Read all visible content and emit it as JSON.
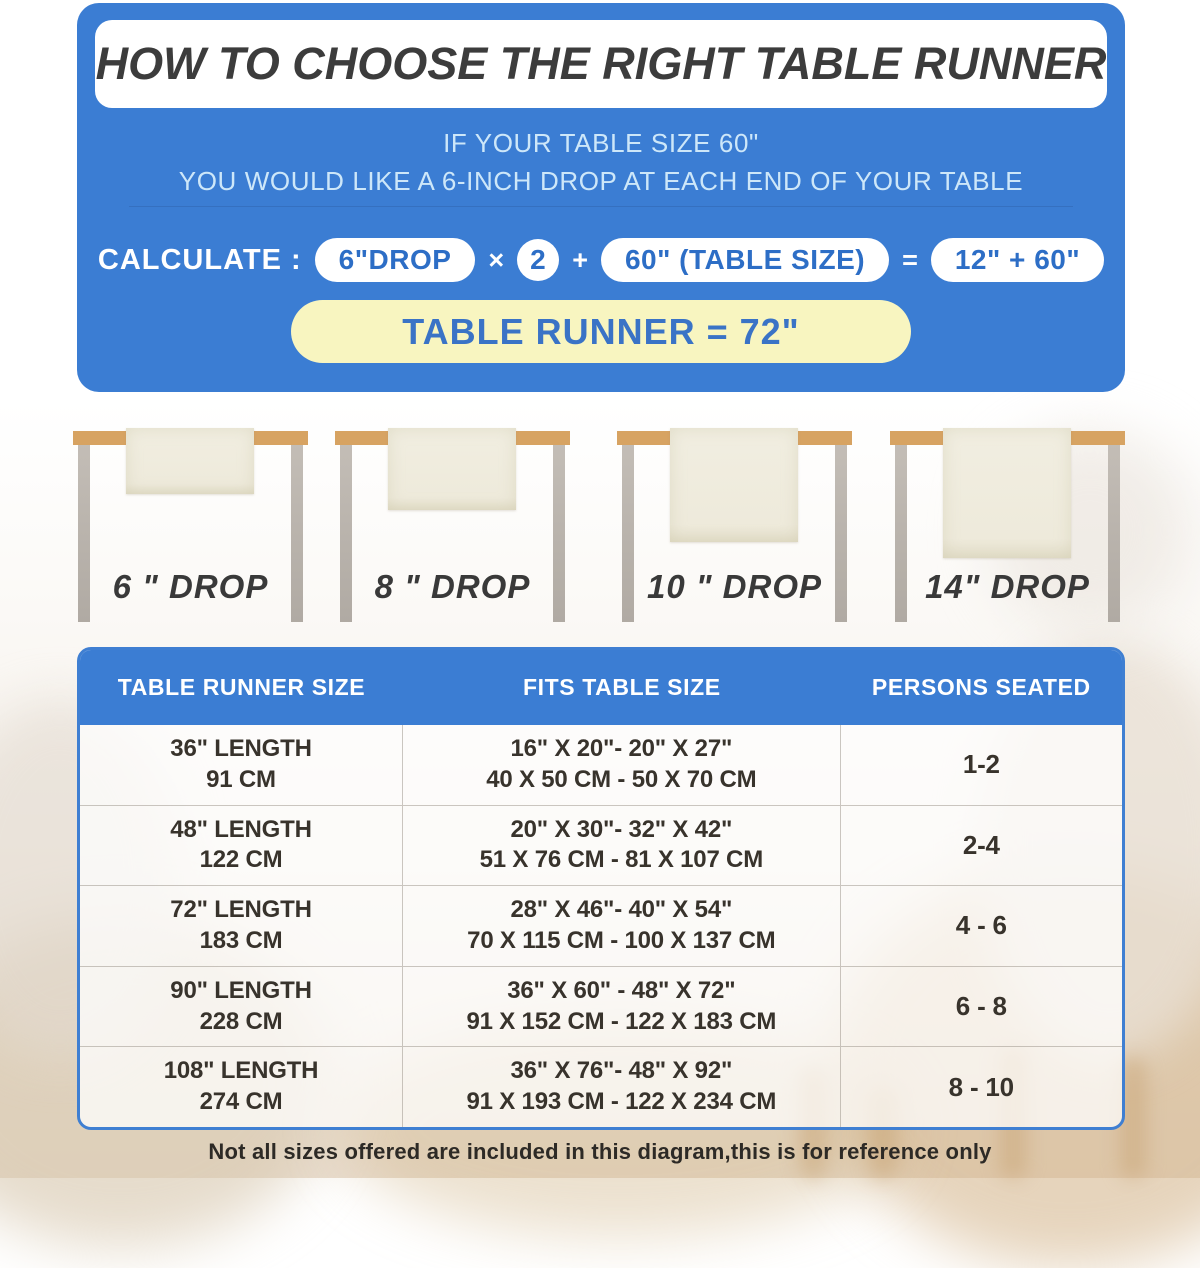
{
  "colors": {
    "panel_blue": "#3B7DD3",
    "accent_text_blue": "#2D6EC6",
    "result_pill_yellow": "#F8F5C0",
    "subtitle_light_blue": "#CDE7F9",
    "tabletop_tan": "#D7A362",
    "leg_gray": "#B6B0A9",
    "runner_cream": "#EFECDF",
    "row_text": "#38332C"
  },
  "header": {
    "title": "HOW TO CHOOSE THE RIGHT TABLE RUNNER",
    "subtitle_line1": "IF YOUR TABLE SIZE 60\"",
    "subtitle_line2": "YOU WOULD LIKE A 6-INCH DROP AT EACH END OF YOUR TABLE"
  },
  "calculation": {
    "label": "CALCULATE :",
    "pill1": "6\"DROP",
    "operator1": "×",
    "pill2": "2",
    "operator2": "+",
    "pill3": "60\" (TABLE SIZE)",
    "operator3": "=",
    "pill4": "12\" + 60\"",
    "result": "TABLE RUNNER = 72\""
  },
  "drops": [
    {
      "label": "6 \" DROP"
    },
    {
      "label": "8 \" DROP"
    },
    {
      "label": "10 \" DROP"
    },
    {
      "label": "14\" DROP"
    }
  ],
  "size_table": {
    "headers": [
      "TABLE RUNNER SIZE",
      "FITS TABLE SIZE",
      "PERSONS SEATED"
    ],
    "rows": [
      {
        "runner_size": [
          "36\" LENGTH",
          "91 CM"
        ],
        "fits": [
          "16\" X 20\"- 20\" X 27\"",
          "40 X 50 CM - 50 X 70 CM"
        ],
        "persons": "1-2"
      },
      {
        "runner_size": [
          "48\" LENGTH",
          "122 CM"
        ],
        "fits": [
          "20\" X 30\"- 32\" X 42\"",
          "51 X 76 CM - 81 X 107 CM"
        ],
        "persons": "2-4"
      },
      {
        "runner_size": [
          "72\" LENGTH",
          "183 CM"
        ],
        "fits": [
          "28\" X 46\"- 40\" X 54\"",
          "70 X 115 CM - 100 X 137 CM"
        ],
        "persons": "4 - 6"
      },
      {
        "runner_size": [
          "90\" LENGTH",
          "228 CM"
        ],
        "fits": [
          "36\" X 60\" - 48\" X 72\"",
          "91 X 152 CM - 122 X 183 CM"
        ],
        "persons": "6 - 8"
      },
      {
        "runner_size": [
          "108\" LENGTH",
          "274 CM"
        ],
        "fits": [
          "36\" X 76\"- 48\" X 92\"",
          "91 X 193 CM - 122 X 234 CM"
        ],
        "persons": "8 - 10"
      }
    ]
  },
  "footer": {
    "note": "Not all sizes offered are included in this diagram,this is for reference only"
  }
}
